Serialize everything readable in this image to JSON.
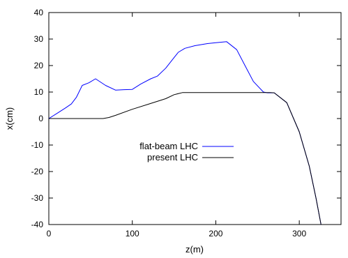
{
  "chart_data": {
    "type": "line",
    "xlabel": "z(m)",
    "ylabel": "x(cm)",
    "xlim": [
      0,
      350
    ],
    "ylim": [
      -40,
      40
    ],
    "x_ticks": [
      0,
      100,
      200,
      300
    ],
    "y_ticks": [
      -40,
      -30,
      -20,
      -10,
      0,
      10,
      20,
      30,
      40
    ],
    "grid": false,
    "legend_position": "center-left",
    "series": [
      {
        "name": "flat-beam LHC",
        "color": "#0000ff",
        "points": [
          [
            0,
            0
          ],
          [
            10,
            2
          ],
          [
            20,
            4
          ],
          [
            27,
            5.5
          ],
          [
            33,
            8
          ],
          [
            40,
            12.5
          ],
          [
            48,
            13.5
          ],
          [
            56,
            15
          ],
          [
            68,
            12.5
          ],
          [
            80,
            10.7
          ],
          [
            90,
            10.9
          ],
          [
            100,
            11
          ],
          [
            110,
            13
          ],
          [
            122,
            15
          ],
          [
            130,
            16
          ],
          [
            140,
            19
          ],
          [
            150,
            23
          ],
          [
            155,
            25
          ],
          [
            163,
            26.5
          ],
          [
            175,
            27.5
          ],
          [
            190,
            28.3
          ],
          [
            200,
            28.6
          ],
          [
            213,
            29
          ],
          [
            225,
            26
          ],
          [
            235,
            20
          ],
          [
            245,
            14
          ],
          [
            257,
            10
          ],
          [
            262,
            9.7
          ],
          [
            270,
            9.7
          ],
          [
            285,
            6
          ],
          [
            300,
            -5
          ],
          [
            312,
            -18
          ],
          [
            320,
            -30
          ],
          [
            326,
            -40
          ]
        ]
      },
      {
        "name": "present LHC",
        "color": "#000000",
        "points": [
          [
            0,
            0
          ],
          [
            65,
            0
          ],
          [
            72,
            0.4
          ],
          [
            80,
            1.2
          ],
          [
            100,
            3.5
          ],
          [
            120,
            5.5
          ],
          [
            140,
            7.5
          ],
          [
            150,
            9
          ],
          [
            160,
            9.8
          ],
          [
            175,
            9.8
          ],
          [
            200,
            9.8
          ],
          [
            230,
            9.8
          ],
          [
            265,
            9.8
          ],
          [
            270,
            9.7
          ],
          [
            285,
            6
          ],
          [
            300,
            -5
          ],
          [
            312,
            -18
          ],
          [
            320,
            -30
          ],
          [
            326,
            -40
          ]
        ]
      }
    ]
  }
}
